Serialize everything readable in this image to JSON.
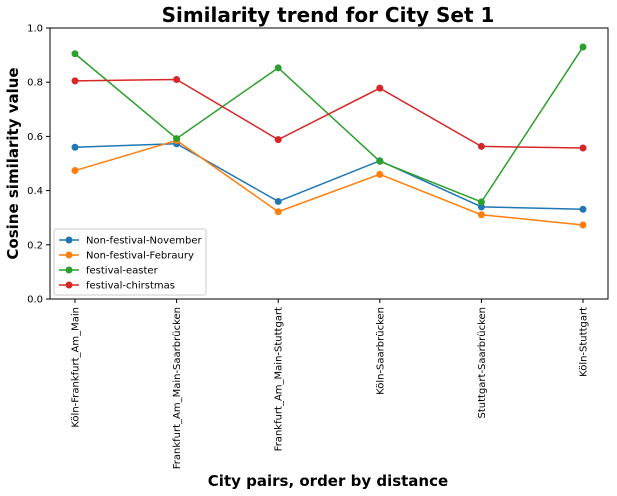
{
  "chart_data": {
    "type": "line",
    "title": "Similarity trend for City Set 1",
    "xlabel": "City pairs, order by distance",
    "ylabel": "Cosine similarity value",
    "categories": [
      "Köln-Frankfurt_Am_Main",
      "Frankfurt_Am_Main-Saarbrücken",
      "Frankfurt_Am_Main-Stuttgart",
      "Köln-Saarbrücken",
      "Stuttgart-Saarbrücken",
      "Köln-Stuttgart"
    ],
    "ylim": [
      0.0,
      1.0
    ],
    "yticks": [
      "0.0",
      "0.2",
      "0.4",
      "0.6",
      "0.8",
      "1.0"
    ],
    "grid": false,
    "legend_position": "lower-left",
    "series": [
      {
        "name": "Non-festival-November",
        "color": "#1f77b4",
        "values": [
          0.56,
          0.573,
          0.36,
          0.51,
          0.34,
          0.331
        ]
      },
      {
        "name": "Non-festival-Febraury",
        "color": "#ff7f0e",
        "values": [
          0.474,
          0.585,
          0.322,
          0.46,
          0.311,
          0.273
        ]
      },
      {
        "name": "festival-easter",
        "color": "#2ca02c",
        "values": [
          0.905,
          0.592,
          0.853,
          0.508,
          0.358,
          0.93
        ]
      },
      {
        "name": "festival-chirstmas",
        "color": "#d62728",
        "values": [
          0.805,
          0.81,
          0.588,
          0.778,
          0.563,
          0.557
        ]
      }
    ]
  }
}
